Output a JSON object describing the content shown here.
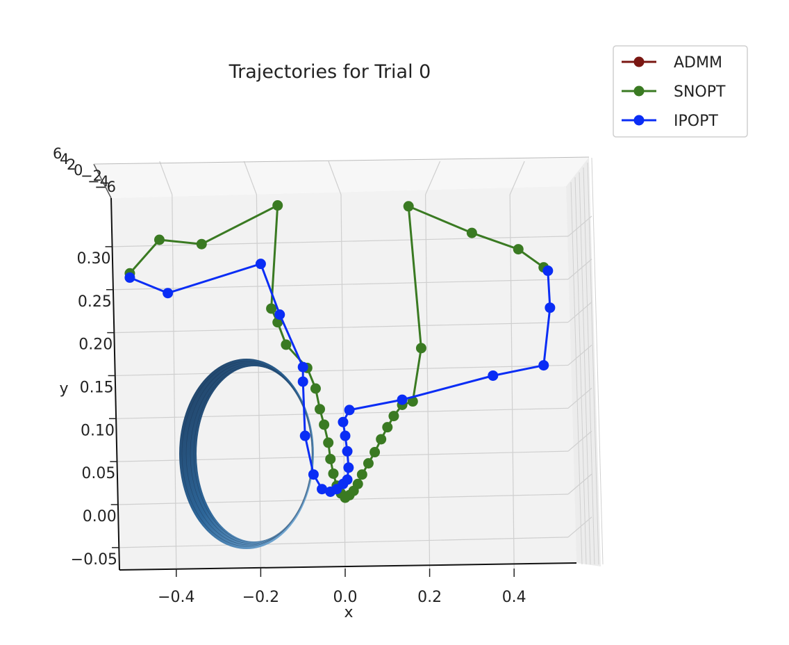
{
  "chart_data": {
    "type": "line",
    "title": "Trajectories for Trial 0",
    "xlabel": "x",
    "ylabel": "y",
    "xlim": [
      -0.53,
      0.55
    ],
    "ylim": [
      -0.065,
      0.36
    ],
    "x_ticks": [
      "−0.4",
      "−0.2",
      "0.0",
      "0.2",
      "0.4"
    ],
    "x_tick_values": [
      -0.4,
      -0.2,
      0.0,
      0.2,
      0.4
    ],
    "y_ticks": [
      "0.30",
      "0.25",
      "0.20",
      "0.15",
      "0.10",
      "0.05",
      "0.00",
      "−0.05"
    ],
    "y_tick_values": [
      0.3,
      0.25,
      0.2,
      0.15,
      0.1,
      0.05,
      0.0,
      -0.05
    ],
    "z_ticks": [
      "6",
      "4",
      "2",
      "0",
      "−2",
      "−4",
      "−6"
    ],
    "grid": true,
    "legend_position": "top-right",
    "series": [
      {
        "name": "ADMM",
        "color": "#7a1712",
        "points": []
      },
      {
        "name": "SNOPT",
        "color": "#3a7a22",
        "points": [
          [
            -0.51,
            0.269
          ],
          [
            -0.44,
            0.308
          ],
          [
            -0.34,
            0.303
          ],
          [
            -0.16,
            0.348
          ],
          [
            -0.175,
            0.228
          ],
          [
            -0.16,
            0.212
          ],
          [
            -0.14,
            0.186
          ],
          [
            -0.09,
            0.159
          ],
          [
            -0.07,
            0.135
          ],
          [
            -0.06,
            0.111
          ],
          [
            -0.05,
            0.093
          ],
          [
            -0.04,
            0.072
          ],
          [
            -0.035,
            0.053
          ],
          [
            -0.028,
            0.036
          ],
          [
            -0.02,
            0.022
          ],
          [
            -0.01,
            0.013
          ],
          [
            0.0,
            0.008
          ],
          [
            0.01,
            0.011
          ],
          [
            0.02,
            0.016
          ],
          [
            0.03,
            0.024
          ],
          [
            0.04,
            0.035
          ],
          [
            0.055,
            0.048
          ],
          [
            0.07,
            0.061
          ],
          [
            0.085,
            0.076
          ],
          [
            0.1,
            0.09
          ],
          [
            0.115,
            0.103
          ],
          [
            0.135,
            0.116
          ],
          [
            0.16,
            0.12
          ],
          [
            0.18,
            0.182
          ],
          [
            0.15,
            0.347
          ],
          [
            0.3,
            0.316
          ],
          [
            0.41,
            0.297
          ],
          [
            0.47,
            0.276
          ]
        ]
      },
      {
        "name": "IPOPT",
        "color": "#0a2df5",
        "points": [
          [
            -0.51,
            0.264
          ],
          [
            -0.42,
            0.246
          ],
          [
            -0.2,
            0.28
          ],
          [
            -0.155,
            0.221
          ],
          [
            -0.1,
            0.16
          ],
          [
            -0.1,
            0.143
          ],
          [
            -0.095,
            0.08
          ],
          [
            -0.075,
            0.035
          ],
          [
            -0.055,
            0.018
          ],
          [
            -0.035,
            0.015
          ],
          [
            -0.02,
            0.018
          ],
          [
            -0.005,
            0.024
          ],
          [
            0.005,
            0.029
          ],
          [
            0.008,
            0.043
          ],
          [
            0.005,
            0.062
          ],
          [
            0.0,
            0.08
          ],
          [
            -0.005,
            0.096
          ],
          [
            0.01,
            0.11
          ],
          [
            0.135,
            0.122
          ],
          [
            0.35,
            0.15
          ],
          [
            0.47,
            0.162
          ],
          [
            0.485,
            0.229
          ],
          [
            0.48,
            0.272
          ]
        ]
      }
    ]
  }
}
